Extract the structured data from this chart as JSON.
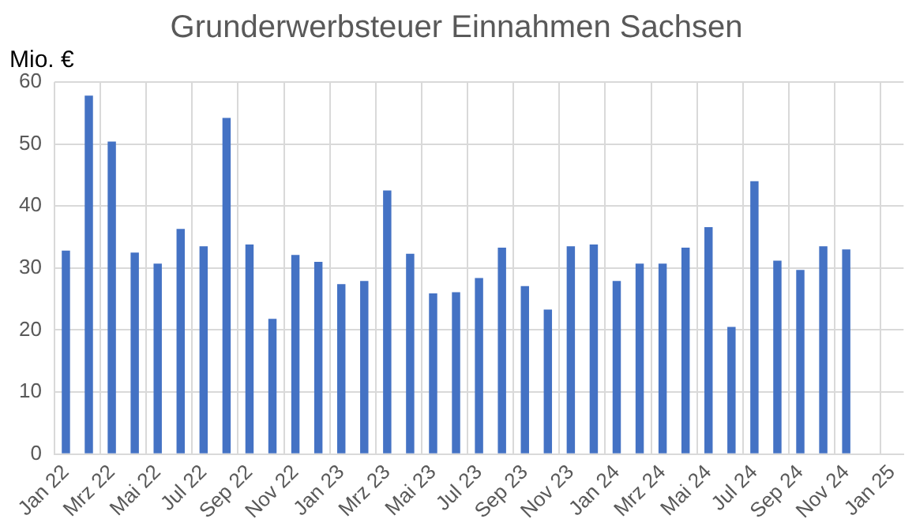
{
  "chart_data": {
    "type": "bar",
    "title": "Grunderwerbsteuer Einnahmen Sachsen",
    "ylabel": "Mio. €",
    "categories": [
      "Jan 22",
      null,
      "Mrz 22",
      null,
      "Mai 22",
      null,
      "Jul 22",
      null,
      "Sep 22",
      null,
      "Nov 22",
      null,
      "Jan 23",
      null,
      "Mrz 23",
      null,
      "Mai 23",
      null,
      "Jul 23",
      null,
      "Sep 23",
      null,
      "Nov 23",
      null,
      "Jan 24",
      null,
      "Mrz 24",
      null,
      "Mai 24",
      null,
      "Jul 24",
      null,
      "Sep 24",
      null,
      "Nov 24",
      null,
      "Jan 25"
    ],
    "values": [
      32.8,
      57.8,
      50.4,
      32.5,
      30.7,
      36.3,
      33.5,
      54.2,
      33.8,
      21.8,
      32.1,
      31.0,
      27.4,
      27.9,
      42.5,
      32.3,
      25.9,
      26.1,
      28.4,
      33.3,
      27.1,
      23.3,
      33.5,
      33.8,
      27.9,
      30.7,
      30.7,
      33.3,
      36.6,
      20.5,
      44.0,
      31.2,
      29.7,
      33.5,
      33.0,
      null,
      null
    ],
    "color": "#4472c4",
    "ylim": [
      0,
      60
    ],
    "yticks": [
      0,
      10,
      20,
      30,
      40,
      50,
      60
    ],
    "grid": true
  }
}
